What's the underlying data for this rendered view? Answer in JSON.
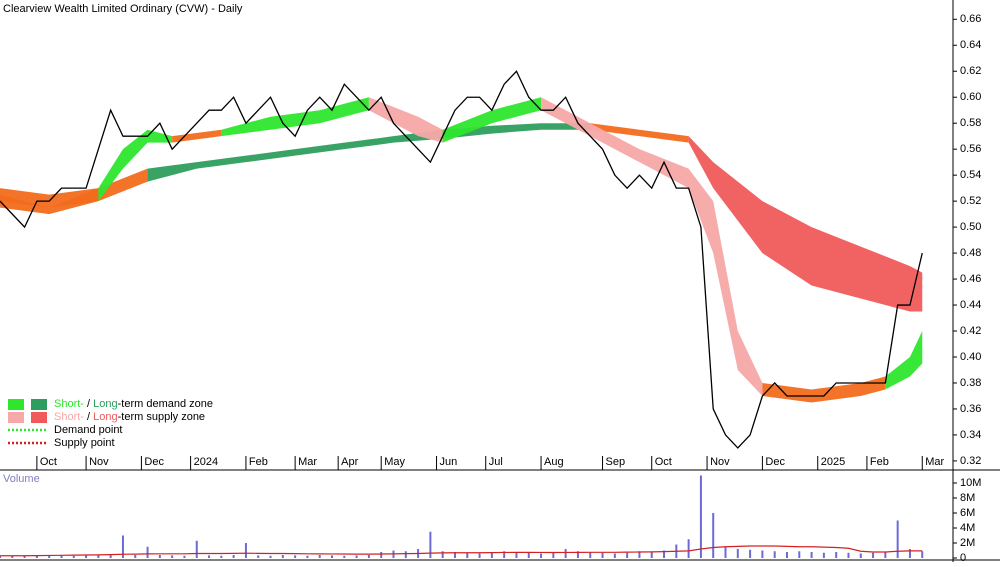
{
  "chart_data": {
    "type": "line",
    "title": "Clearview Wealth Limited Ordinary (CVW) - Daily",
    "volume_title": "Volume",
    "x": [
      0,
      1,
      2,
      3,
      4,
      5,
      6,
      7,
      8,
      9,
      10,
      11,
      12,
      13,
      14,
      15,
      16,
      17,
      18,
      19,
      20,
      21,
      22,
      23,
      24,
      25,
      26,
      27,
      28,
      29,
      30,
      31,
      32,
      33,
      34,
      35,
      36,
      37,
      38,
      39,
      40,
      41,
      42,
      43,
      44,
      45,
      46,
      47,
      48,
      49,
      50,
      51,
      52,
      53,
      54,
      55,
      56,
      57,
      58,
      59,
      60,
      61,
      62,
      63,
      64,
      65,
      66,
      67,
      68,
      69,
      70,
      71,
      72,
      73,
      74,
      75
    ],
    "close": [
      0.52,
      0.51,
      0.5,
      0.52,
      0.52,
      0.53,
      0.53,
      0.53,
      0.56,
      0.59,
      0.57,
      0.57,
      0.57,
      0.58,
      0.56,
      0.57,
      0.58,
      0.59,
      0.59,
      0.6,
      0.58,
      0.59,
      0.6,
      0.58,
      0.57,
      0.59,
      0.6,
      0.59,
      0.61,
      0.6,
      0.59,
      0.6,
      0.58,
      0.57,
      0.56,
      0.55,
      0.57,
      0.59,
      0.6,
      0.6,
      0.59,
      0.61,
      0.62,
      0.6,
      0.59,
      0.59,
      0.6,
      0.58,
      0.57,
      0.56,
      0.54,
      0.53,
      0.54,
      0.53,
      0.55,
      0.53,
      0.53,
      0.5,
      0.36,
      0.34,
      0.33,
      0.34,
      0.37,
      0.38,
      0.37,
      0.37,
      0.37,
      0.37,
      0.38,
      0.38,
      0.38,
      0.38,
      0.38,
      0.44,
      0.44,
      0.48
    ],
    "close_color": "#000000",
    "volume": [
      300000,
      250000,
      300000,
      350000,
      300000,
      400000,
      300000,
      350000,
      400000,
      500000,
      3000000,
      400000,
      1500000,
      400000,
      350000,
      300000,
      2300000,
      350000,
      300000,
      400000,
      2000000,
      350000,
      300000,
      400000,
      350000,
      300000,
      400000,
      350000,
      300000,
      350000,
      400000,
      800000,
      1000000,
      900000,
      1200000,
      3500000,
      900000,
      800000,
      700000,
      600000,
      700000,
      900000,
      800000,
      700000,
      600000,
      700000,
      1200000,
      900000,
      800000,
      700000,
      600000,
      700000,
      900000,
      800000,
      1000000,
      1800000,
      2500000,
      11000000,
      6000000,
      1500000,
      1200000,
      1100000,
      1000000,
      900000,
      800000,
      900000,
      800000,
      700000,
      800000,
      700000,
      600000,
      700000,
      800000,
      5000000,
      1200000,
      900000
    ],
    "volume_color": "#6b6bd6",
    "volume_avg": [
      300000,
      300000,
      300000,
      320000,
      340000,
      360000,
      380000,
      400000,
      420000,
      450000,
      500000,
      520000,
      550000,
      560000,
      560000,
      560000,
      600000,
      600000,
      600000,
      620000,
      640000,
      620000,
      600000,
      600000,
      580000,
      560000,
      550000,
      540000,
      530000,
      520000,
      520000,
      530000,
      550000,
      580000,
      600000,
      650000,
      680000,
      700000,
      700000,
      700000,
      720000,
      740000,
      750000,
      750000,
      740000,
      730000,
      740000,
      750000,
      760000,
      760000,
      760000,
      780000,
      800000,
      820000,
      850000,
      900000,
      950000,
      1200000,
      1400000,
      1500000,
      1550000,
      1600000,
      1600000,
      1600000,
      1550000,
      1500000,
      1500000,
      1450000,
      1400000,
      1300000,
      900000,
      800000,
      800000,
      900000,
      950000,
      950000
    ],
    "volume_avg_color": "#d62020",
    "bands": [
      {
        "color": "#f26b1d",
        "x": [
          0,
          4,
          8,
          12
        ],
        "upper": [
          0.53,
          0.525,
          0.53,
          0.545
        ],
        "lower": [
          0.52,
          0.515,
          0.52,
          0.535
        ]
      },
      {
        "color": "#2e9e5e",
        "x": [
          12,
          16,
          20,
          24,
          28,
          32,
          36,
          40,
          44,
          48
        ],
        "upper": [
          0.545,
          0.55,
          0.555,
          0.56,
          0.565,
          0.57,
          0.575,
          0.578,
          0.58,
          0.58
        ],
        "lower": [
          0.535,
          0.545,
          0.55,
          0.555,
          0.56,
          0.565,
          0.568,
          0.572,
          0.575,
          0.575
        ]
      },
      {
        "color": "#f26b1d",
        "x": [
          48,
          52,
          56
        ],
        "upper": [
          0.58,
          0.575,
          0.57
        ],
        "lower": [
          0.575,
          0.57,
          0.565
        ]
      },
      {
        "color": "#f05a5a",
        "x": [
          56,
          58,
          62,
          66,
          70,
          74,
          75
        ],
        "upper": [
          0.57,
          0.55,
          0.52,
          0.5,
          0.485,
          0.47,
          0.465
        ],
        "lower": [
          0.565,
          0.53,
          0.48,
          0.455,
          0.445,
          0.435,
          0.435
        ]
      },
      {
        "color": "#f26b1d",
        "x": [
          0,
          4,
          8
        ],
        "upper": [
          0.525,
          0.515,
          0.53
        ],
        "lower": [
          0.515,
          0.51,
          0.52
        ]
      },
      {
        "color": "#2ee62e",
        "x": [
          8,
          10,
          12,
          14
        ],
        "upper": [
          0.53,
          0.56,
          0.575,
          0.57
        ],
        "lower": [
          0.52,
          0.545,
          0.565,
          0.565
        ]
      },
      {
        "color": "#f26b1d",
        "x": [
          14,
          18
        ],
        "upper": [
          0.57,
          0.575
        ],
        "lower": [
          0.565,
          0.57
        ]
      },
      {
        "color": "#2ee62e",
        "x": [
          18,
          22,
          26,
          30
        ],
        "upper": [
          0.575,
          0.585,
          0.59,
          0.6
        ],
        "lower": [
          0.57,
          0.575,
          0.58,
          0.59
        ]
      },
      {
        "color": "#f7a8a8",
        "x": [
          30,
          34,
          36
        ],
        "upper": [
          0.6,
          0.585,
          0.575
        ],
        "lower": [
          0.59,
          0.57,
          0.565
        ]
      },
      {
        "color": "#2ee62e",
        "x": [
          36,
          40,
          44
        ],
        "upper": [
          0.575,
          0.59,
          0.6
        ],
        "lower": [
          0.565,
          0.58,
          0.59
        ]
      },
      {
        "color": "#f7a8a8",
        "x": [
          44,
          48,
          52,
          56,
          58,
          60,
          62
        ],
        "upper": [
          0.6,
          0.58,
          0.56,
          0.545,
          0.52,
          0.42,
          0.38
        ],
        "lower": [
          0.59,
          0.57,
          0.55,
          0.53,
          0.48,
          0.39,
          0.37
        ]
      },
      {
        "color": "#f26b1d",
        "x": [
          62,
          66,
          70,
          72
        ],
        "upper": [
          0.38,
          0.375,
          0.38,
          0.385
        ],
        "lower": [
          0.37,
          0.365,
          0.37,
          0.375
        ]
      },
      {
        "color": "#2ee62e",
        "x": [
          72,
          74,
          75
        ],
        "upper": [
          0.385,
          0.4,
          0.42
        ],
        "lower": [
          0.375,
          0.385,
          0.395
        ]
      }
    ],
    "xlim": [
      0,
      77.5
    ],
    "xticks": [
      {
        "value": 3,
        "label": "Oct"
      },
      {
        "value": 7,
        "label": "Nov"
      },
      {
        "value": 11.5,
        "label": "Dec"
      },
      {
        "value": 15.5,
        "label": "2024"
      },
      {
        "value": 20,
        "label": "Feb"
      },
      {
        "value": 24,
        "label": "Mar"
      },
      {
        "value": 27.5,
        "label": "Apr"
      },
      {
        "value": 31,
        "label": "May"
      },
      {
        "value": 35.5,
        "label": "Jun"
      },
      {
        "value": 39.5,
        "label": "Jul"
      },
      {
        "value": 44,
        "label": "Aug"
      },
      {
        "value": 49,
        "label": "Sep"
      },
      {
        "value": 53,
        "label": "Oct"
      },
      {
        "value": 57.5,
        "label": "Nov"
      },
      {
        "value": 62,
        "label": "Dec"
      },
      {
        "value": 66.5,
        "label": "2025"
      },
      {
        "value": 70.5,
        "label": "Feb"
      },
      {
        "value": 75,
        "label": "Mar"
      }
    ],
    "ylim": [
      0.313,
      0.671
    ],
    "yticks": [
      0.32,
      0.34,
      0.36,
      0.38,
      {
        "value": 0.4,
        "label": "0.40"
      },
      0.42,
      0.44,
      0.46,
      0.48,
      {
        "value": 0.5,
        "label": "0.50"
      },
      0.52,
      0.54,
      0.56,
      0.58,
      {
        "value": 0.6,
        "label": "0.60"
      },
      0.62,
      0.64,
      0.66
    ],
    "volume_ylim": [
      0,
      11200000
    ],
    "volume_yticks": [
      0,
      {
        "value": 2000000,
        "label": "2M"
      },
      {
        "value": 4000000,
        "label": "4M"
      },
      {
        "value": 6000000,
        "label": "6M"
      },
      {
        "value": 8000000,
        "label": "8M"
      },
      {
        "value": 10000000,
        "label": "10M"
      }
    ],
    "legend": [
      {
        "parts": [
          "Short-",
          " / ",
          "Long",
          "-term demand zone"
        ],
        "colors": [
          "#2ee62e",
          "#2e9e5e"
        ],
        "text_colors": [
          "#2ee62e",
          "#000000",
          "#2e9e5e",
          "#000000"
        ]
      },
      {
        "parts": [
          "Short-",
          " / ",
          "Long",
          "-term supply zone"
        ],
        "colors": [
          "#f7a8a8",
          "#f05a5a"
        ],
        "text_colors": [
          "#f7a8a8",
          "#000000",
          "#f05a5a",
          "#000000"
        ]
      },
      {
        "parts": [
          "Demand point"
        ],
        "line_color": "#2ee62e",
        "text_colors": [
          "#000000"
        ]
      },
      {
        "parts": [
          "Supply point"
        ],
        "line_color": "#d62020",
        "text_colors": [
          "#000000"
        ]
      }
    ]
  }
}
